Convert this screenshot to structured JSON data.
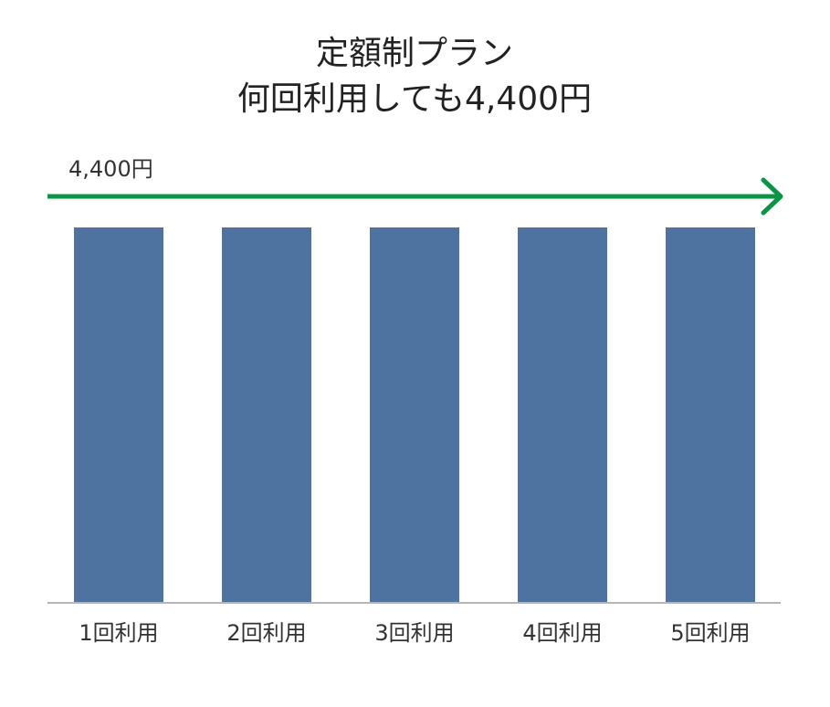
{
  "chart_data": {
    "type": "bar",
    "title": [
      "定額制プラン",
      "何回利用しても4,400円"
    ],
    "annotation": "4,400円",
    "categories": [
      "1回利用",
      "2回利用",
      "3回利用",
      "4回利用",
      "5回利用"
    ],
    "values": [
      4400,
      4400,
      4400,
      4400,
      4400
    ],
    "color": "#4e73a0"
  }
}
